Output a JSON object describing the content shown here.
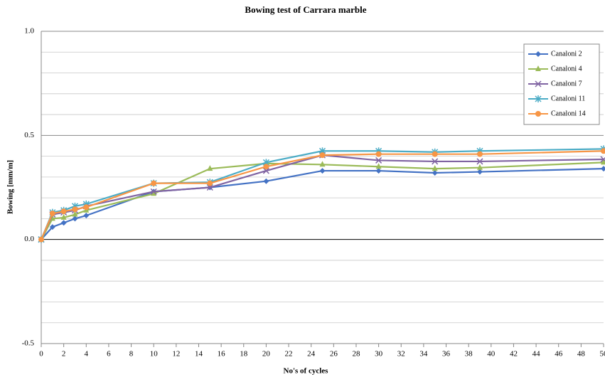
{
  "chart_data": {
    "type": "line",
    "title": "Bowing test of Carrara  marble",
    "x_label": "No's of cycles",
    "y_label": "Bowing [mm/m]",
    "x": [
      0,
      1,
      2,
      3,
      4,
      10,
      15,
      20,
      25,
      30,
      35,
      39,
      50
    ],
    "series": [
      {
        "name": "Canaloni 2",
        "color": "#4472c4",
        "marker": "diamond",
        "values": [
          0,
          0.06,
          0.08,
          0.1,
          0.115,
          0.23,
          0.25,
          0.28,
          0.33,
          0.33,
          0.32,
          0.325,
          0.34
        ]
      },
      {
        "name": "Canaloni 4",
        "color": "#9bbb59",
        "marker": "triangle",
        "values": [
          0,
          0.1,
          0.105,
          0.12,
          0.14,
          0.22,
          0.34,
          0.365,
          0.36,
          0.35,
          0.34,
          0.345,
          0.37
        ]
      },
      {
        "name": "Canaloni 7",
        "color": "#8064a2",
        "marker": "cross",
        "values": [
          0,
          0.12,
          0.13,
          0.14,
          0.16,
          0.23,
          0.25,
          0.33,
          0.405,
          0.38,
          0.375,
          0.375,
          0.385
        ]
      },
      {
        "name": "Canaloni 11",
        "color": "#4bacc6",
        "marker": "star",
        "values": [
          0,
          0.13,
          0.14,
          0.16,
          0.17,
          0.27,
          0.275,
          0.37,
          0.425,
          0.425,
          0.42,
          0.425,
          0.435
        ]
      },
      {
        "name": "Canaloni 14",
        "color": "#f79646",
        "marker": "circle",
        "values": [
          0,
          0.125,
          0.135,
          0.145,
          0.155,
          0.27,
          0.27,
          0.35,
          0.405,
          0.41,
          0.41,
          0.41,
          0.425
        ]
      }
    ],
    "xlim": [
      0,
      50
    ],
    "xticks": [
      0,
      2,
      4,
      6,
      8,
      10,
      12,
      14,
      16,
      18,
      20,
      22,
      24,
      26,
      28,
      30,
      32,
      34,
      36,
      38,
      40,
      42,
      44,
      46,
      48,
      50
    ],
    "ylim": [
      -0.5,
      1.0
    ],
    "yticks": [
      -0.5,
      {
        "value": 0,
        "label": "0.0"
      },
      0.5,
      {
        "value": 1.0,
        "label": "1.0"
      }
    ],
    "y_minor_gridlines": [
      -0.4,
      -0.3,
      -0.2,
      -0.1,
      0.1,
      0.2,
      0.3,
      0.4,
      0.6,
      0.7,
      0.8,
      0.9
    ],
    "grid": true,
    "legend_position": "upper right"
  }
}
